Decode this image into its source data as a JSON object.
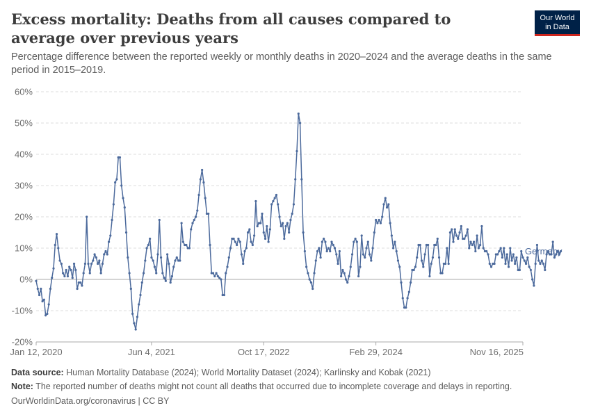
{
  "title": "Excess mortality: Deaths from all causes compared to average over previous years",
  "subtitle": "Percentage difference between the reported weekly or monthly deaths in 2020–2024 and the average deaths in the same period in 2015–2019.",
  "logo": {
    "line1": "Our World",
    "line2": "in Data",
    "bg": "#002147",
    "accent": "#ce261e"
  },
  "footer": {
    "source_label": "Data source:",
    "source_text": "Human Mortality Database (2024); World Mortality Dataset (2024); Karlinsky and Kobak (2021)",
    "note_label": "Note:",
    "note_text": "The reported number of deaths might not count all deaths that occurred due to incomplete coverage and delays in reporting.",
    "credit": "OurWorldinData.org/coronavirus | CC BY"
  },
  "chart_data": {
    "type": "line",
    "title": "Excess mortality: Deaths from all causes compared to average over previous years",
    "xlabel": "",
    "ylabel": "",
    "ylim": [
      -20,
      60
    ],
    "yticks": [
      -20,
      -10,
      0,
      10,
      20,
      30,
      40,
      50,
      60
    ],
    "ytick_labels": [
      "-20%",
      "-10%",
      "0%",
      "10%",
      "20%",
      "30%",
      "40%",
      "50%",
      "60%"
    ],
    "xlim": [
      0,
      308
    ],
    "xticks": [
      {
        "x": 0,
        "label": "Jan 12, 2020"
      },
      {
        "x": 73,
        "label": "Jun 4, 2021"
      },
      {
        "x": 144,
        "label": "Oct 17, 2022"
      },
      {
        "x": 215,
        "label": "Feb 29, 2024"
      },
      {
        "x": 308,
        "label": "Nov 16, 2025"
      }
    ],
    "grid": "horizontal-dashed",
    "series": [
      {
        "name": "Germany",
        "color": "#4c6a9c",
        "x_start": 0,
        "x_step": 1,
        "values": [
          -0.5,
          -3,
          -5,
          -3,
          -7,
          -6.5,
          -11.5,
          -11,
          -8,
          -3,
          0.5,
          3.5,
          11,
          14.5,
          10,
          6,
          5,
          2,
          1,
          3,
          1,
          4,
          3,
          0.5,
          5,
          3,
          -3,
          -1,
          -1,
          -2,
          2,
          5,
          20,
          5,
          2,
          5,
          6,
          8,
          7,
          5,
          6,
          2,
          5,
          8,
          9,
          8,
          12,
          14,
          19,
          24,
          31,
          32,
          39,
          39,
          30,
          26,
          23,
          15,
          7,
          2,
          -3,
          -11,
          -14,
          -16,
          -12,
          -8,
          -5,
          -1,
          2,
          6,
          10,
          11,
          13,
          7,
          6,
          4,
          2,
          8,
          19,
          7,
          2,
          0.5,
          -0.5,
          8,
          5,
          -1,
          1,
          4,
          6,
          7,
          6,
          6,
          18,
          12,
          11,
          11,
          10,
          10,
          16,
          18,
          19,
          20,
          22,
          27,
          32,
          35,
          31,
          26,
          21,
          21,
          11,
          2,
          2,
          1,
          2,
          1,
          0.5,
          0,
          -5,
          -5,
          2,
          4,
          7,
          10,
          13,
          13,
          12,
          11,
          13,
          12,
          8,
          5,
          9,
          10,
          15,
          16,
          12,
          11,
          14,
          25,
          17,
          18,
          18,
          21,
          15,
          13,
          17,
          12,
          16,
          24,
          25,
          26,
          27,
          24,
          20,
          17,
          18,
          13,
          17,
          18,
          15,
          19,
          21,
          24,
          32,
          41,
          53,
          50,
          32,
          15,
          9,
          4,
          2,
          0,
          -1,
          -3,
          2,
          6,
          9,
          10,
          7,
          12,
          13,
          12,
          9,
          10,
          9,
          12,
          11,
          10,
          8,
          5,
          9,
          1,
          3,
          2,
          0,
          -1,
          1,
          4,
          8,
          12,
          13,
          12,
          1,
          4,
          14,
          8,
          7,
          10,
          12,
          8,
          6,
          10,
          15,
          19,
          18,
          19,
          18,
          20,
          24,
          26,
          23,
          24,
          18,
          14,
          10,
          12,
          9,
          6,
          4,
          -1,
          -6,
          -9,
          -9,
          -6,
          -4,
          -1,
          3,
          3,
          4,
          7,
          11,
          11,
          6,
          4,
          8,
          11,
          11,
          1,
          5,
          7,
          11,
          11,
          13,
          7,
          2,
          2,
          5,
          5,
          10,
          5,
          15,
          16,
          12,
          16,
          14,
          13,
          15,
          17,
          13,
          13,
          14,
          16,
          10,
          12,
          11,
          12,
          9,
          14,
          10,
          11,
          17,
          10,
          9,
          9,
          8,
          5,
          4,
          5,
          5,
          8,
          8,
          9,
          10,
          7,
          10,
          5,
          8,
          4,
          10,
          6,
          8,
          5,
          7,
          3,
          3,
          9,
          7,
          6,
          5,
          7,
          4,
          3,
          0,
          -2,
          5,
          11,
          6,
          5,
          6,
          5,
          3,
          8,
          9,
          8,
          8,
          12,
          7,
          8,
          9,
          8,
          9
        ]
      }
    ]
  }
}
